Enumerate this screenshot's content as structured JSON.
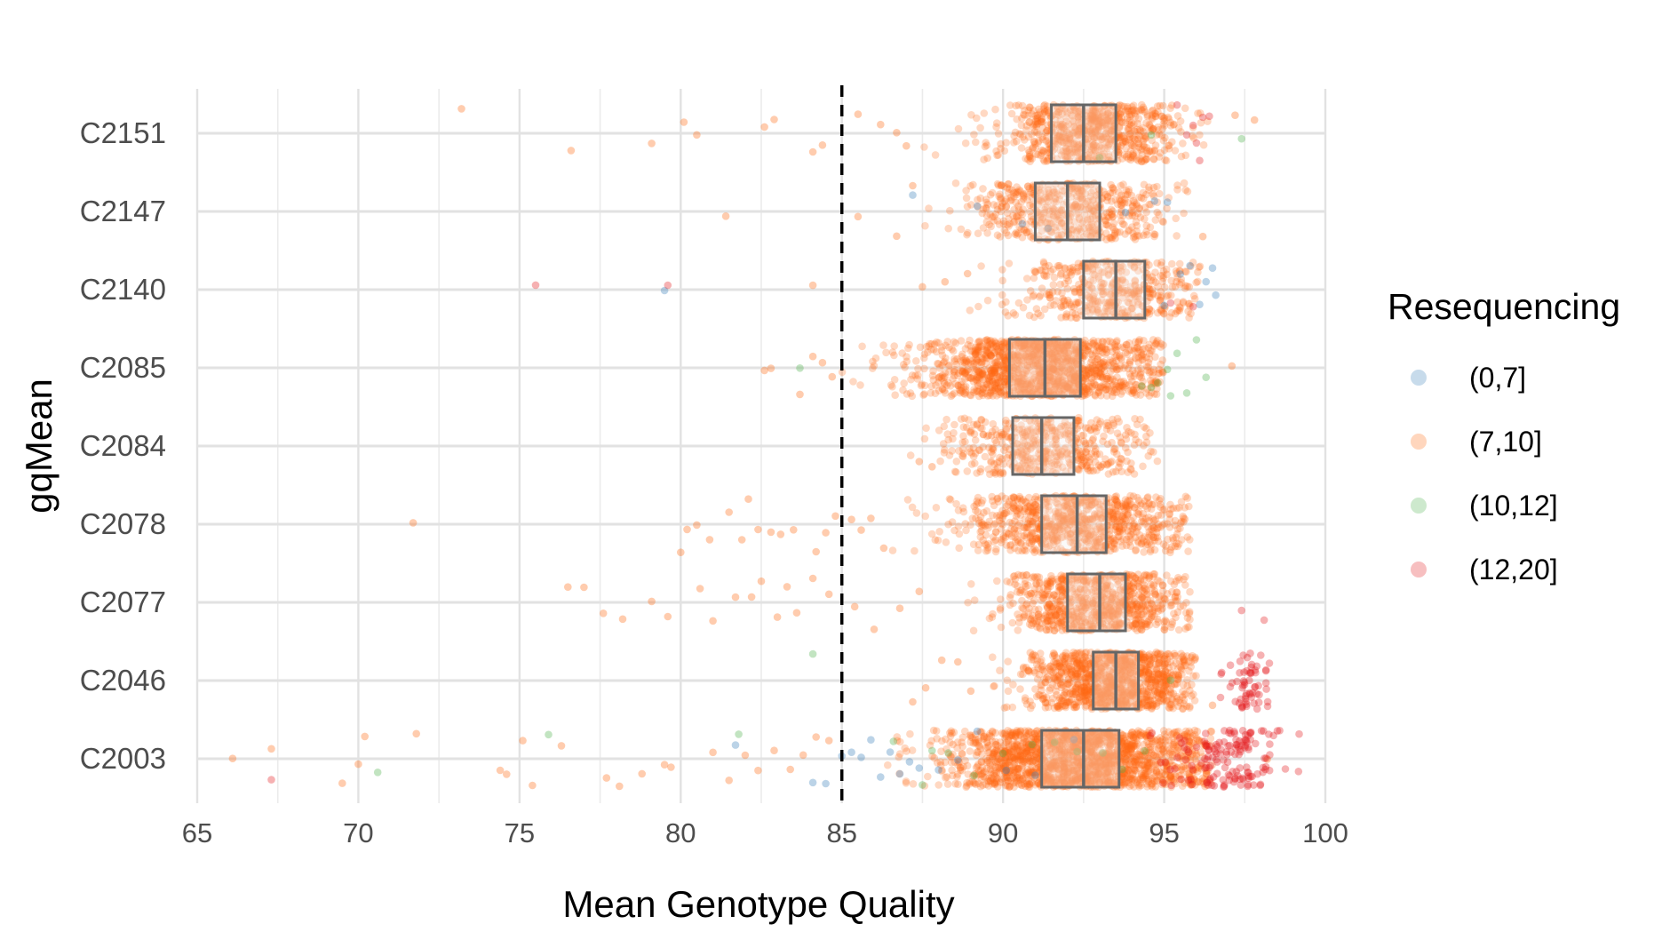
{
  "chart_data": {
    "type": "scatter",
    "subtype": "jittered strip plot with box plots",
    "xlabel": "Mean Genotype Quality",
    "ylabel": "gqMean",
    "xlim": [
      65,
      100
    ],
    "x_ticks": [
      65,
      70,
      75,
      80,
      85,
      90,
      95,
      100
    ],
    "categories": [
      "C2151",
      "C2147",
      "C2140",
      "C2085",
      "C2084",
      "C2078",
      "C2077",
      "C2046",
      "C2003"
    ],
    "reference_line": {
      "x": 85,
      "style": "dashed",
      "color": "#000000"
    },
    "grid": true,
    "legend": {
      "title": "Resequencing",
      "position": "right",
      "entries": [
        {
          "label": "(0,7]",
          "color": "#377EB8"
        },
        {
          "label": "(7,10]",
          "color": "#FF6A13"
        },
        {
          "label": "(10,12]",
          "color": "#4DAF4A"
        },
        {
          "label": "(12,20]",
          "color": "#E41A1C"
        }
      ]
    },
    "boxes": [
      {
        "category": "C2151",
        "q1": 91.5,
        "median": 92.5,
        "q3": 93.5
      },
      {
        "category": "C2147",
        "q1": 91.0,
        "median": 92.0,
        "q3": 93.0
      },
      {
        "category": "C2140",
        "q1": 92.5,
        "median": 93.5,
        "q3": 94.4
      },
      {
        "category": "C2085",
        "q1": 90.2,
        "median": 91.3,
        "q3": 92.4
      },
      {
        "category": "C2084",
        "q1": 90.3,
        "median": 91.2,
        "q3": 92.2
      },
      {
        "category": "C2078",
        "q1": 91.2,
        "median": 92.3,
        "q3": 93.2
      },
      {
        "category": "C2077",
        "q1": 92.0,
        "median": 93.0,
        "q3": 93.8
      },
      {
        "category": "C2046",
        "q1": 92.8,
        "median": 93.5,
        "q3": 94.2
      },
      {
        "category": "C2003",
        "q1": 91.2,
        "median": 92.5,
        "q3": 93.6
      }
    ],
    "series": [
      {
        "category": "C2151",
        "main": {
          "group": "(7,10]",
          "mean": 92.8,
          "sd": 1.4,
          "min": 87,
          "max": 96.5,
          "n": 750
        },
        "extras": [
          {
            "group": "(7,10]",
            "x": [
              73.2,
              76.6,
              79.1,
              80.1,
              80.5,
              82.6,
              82.9,
              84.1,
              84.4,
              85.5,
              86.2,
              86.7,
              87.0,
              97.2,
              97.8
            ]
          },
          {
            "group": "(12,20]",
            "x": [
              95.4,
              95.7,
              96.0,
              96.2,
              96.4,
              95.9,
              96.1
            ]
          },
          {
            "group": "(10,12]",
            "x": [
              93.0,
              94.6,
              97.4
            ]
          }
        ]
      },
      {
        "category": "C2147",
        "main": {
          "group": "(7,10]",
          "mean": 92.0,
          "sd": 1.6,
          "min": 87,
          "max": 95.8,
          "n": 550
        },
        "extras": [
          {
            "group": "(7,10]",
            "x": [
              81.4,
              85.5,
              86.7,
              87.2,
              96.2
            ]
          },
          {
            "group": "(0,7]",
            "x": [
              87.2,
              89.2,
              90.6,
              91.4,
              93.8,
              94.7,
              95.1
            ]
          }
        ]
      },
      {
        "category": "C2140",
        "main": {
          "group": "(7,10]",
          "mean": 93.4,
          "sd": 1.5,
          "min": 88,
          "max": 96.2,
          "n": 450
        },
        "extras": [
          {
            "group": "(7,10]",
            "x": [
              84.1,
              87.5,
              88.2,
              88.9
            ]
          },
          {
            "group": "(0,7]",
            "x": [
              79.5,
              95.0,
              95.5,
              95.8,
              96.1,
              96.3,
              96.6,
              96.5
            ]
          },
          {
            "group": "(12,20]",
            "x": [
              75.5,
              79.6,
              95.2,
              95.9
            ]
          }
        ]
      },
      {
        "category": "C2085",
        "main": {
          "group": "(7,10]",
          "mean": 91.2,
          "sd": 1.9,
          "min": 85,
          "max": 95.0,
          "n": 1400
        },
        "extras": [
          {
            "group": "(7,10]",
            "x": [
              82.6,
              82.8,
              83.7,
              84.1,
              84.4,
              84.7,
              97.1
            ]
          },
          {
            "group": "(10,12]",
            "x": [
              83.7,
              94.3,
              94.8,
              95.1,
              95.4,
              95.7,
              96.0,
              96.3,
              94.6,
              95.2
            ]
          }
        ]
      },
      {
        "category": "C2084",
        "main": {
          "group": "(7,10]",
          "mean": 91.3,
          "sd": 1.5,
          "min": 87,
          "max": 94.8,
          "n": 500
        },
        "extras": [
          {
            "group": "(7,10]",
            "x": [
              87.4,
              87.8
            ]
          }
        ]
      },
      {
        "category": "C2078",
        "main": {
          "group": "(7,10]",
          "mean": 92.2,
          "sd": 1.8,
          "min": 86,
          "max": 95.8,
          "n": 850
        },
        "extras": [
          {
            "group": "(7,10]",
            "x": [
              71.7,
              80.0,
              80.2,
              80.5,
              80.9,
              81.5,
              81.9,
              82.1,
              82.4,
              82.8,
              83.1,
              83.5,
              84.2,
              84.5,
              84.8,
              85.3,
              85.6,
              85.9,
              86.3
            ]
          }
        ]
      },
      {
        "category": "C2077",
        "main": {
          "group": "(7,10]",
          "mean": 92.9,
          "sd": 1.4,
          "min": 88,
          "max": 95.8,
          "n": 800
        },
        "extras": [
          {
            "group": "(7,10]",
            "x": [
              76.5,
              77.0,
              77.6,
              78.2,
              79.1,
              79.6,
              80.6,
              81.0,
              81.7,
              82.2,
              82.5,
              83.0,
              83.3,
              83.6,
              84.1,
              84.6,
              85.4,
              86.0,
              86.8,
              87.4
            ]
          },
          {
            "group": "(12,20]",
            "x": [
              97.4,
              98.1
            ]
          }
        ]
      },
      {
        "category": "C2046",
        "main": {
          "group": "(7,10]",
          "mean": 93.4,
          "sd": 1.3,
          "min": 88,
          "max": 96.0,
          "n": 1100
        },
        "extras": [
          {
            "group": "(7,10]",
            "x": [
              87.2,
              87.6,
              88.1,
              88.6,
              89.0,
              96.5
            ]
          },
          {
            "group": "(10,12]",
            "x": [
              84.1,
              95.2
            ]
          },
          {
            "group": "(12,20]",
            "cluster": {
              "mean": 97.6,
              "sd": 0.35,
              "n": 60
            }
          }
        ]
      },
      {
        "category": "C2003",
        "main": {
          "group": "(7,10]",
          "mean": 92.3,
          "sd": 2.1,
          "min": 85,
          "max": 96.5,
          "n": 1800
        },
        "extras": [
          {
            "group": "(7,10]",
            "x": [
              66.1,
              67.3,
              69.5,
              70.0,
              70.2,
              71.8,
              74.4,
              74.6,
              75.1,
              75.4,
              76.3,
              77.7,
              78.1,
              78.8,
              79.5,
              79.7,
              81.0,
              81.5,
              82.0,
              82.4,
              82.9,
              83.4,
              83.8,
              84.2,
              84.6,
              98.2
            ]
          },
          {
            "group": "(12,20]",
            "x": [
              67.3
            ]
          },
          {
            "group": "(10,12]",
            "x": [
              70.6,
              75.9,
              81.8,
              87.5,
              88.3,
              89.1,
              90.0,
              90.9,
              91.6,
              92.3,
              93.1,
              93.7,
              94.4,
              86.6,
              87.8
            ]
          },
          {
            "group": "(0,7]",
            "x": [
              81.7,
              84.1,
              84.5,
              85.0,
              85.3,
              85.6,
              85.9,
              86.2,
              86.5,
              86.8,
              87.1,
              87.4,
              88.0,
              88.6,
              89.2,
              90.1,
              91.0,
              92.2
            ]
          },
          {
            "group": "(12,20]",
            "cluster": {
              "mean": 96.8,
              "sd": 0.9,
              "n": 150
            }
          }
        ]
      }
    ]
  }
}
